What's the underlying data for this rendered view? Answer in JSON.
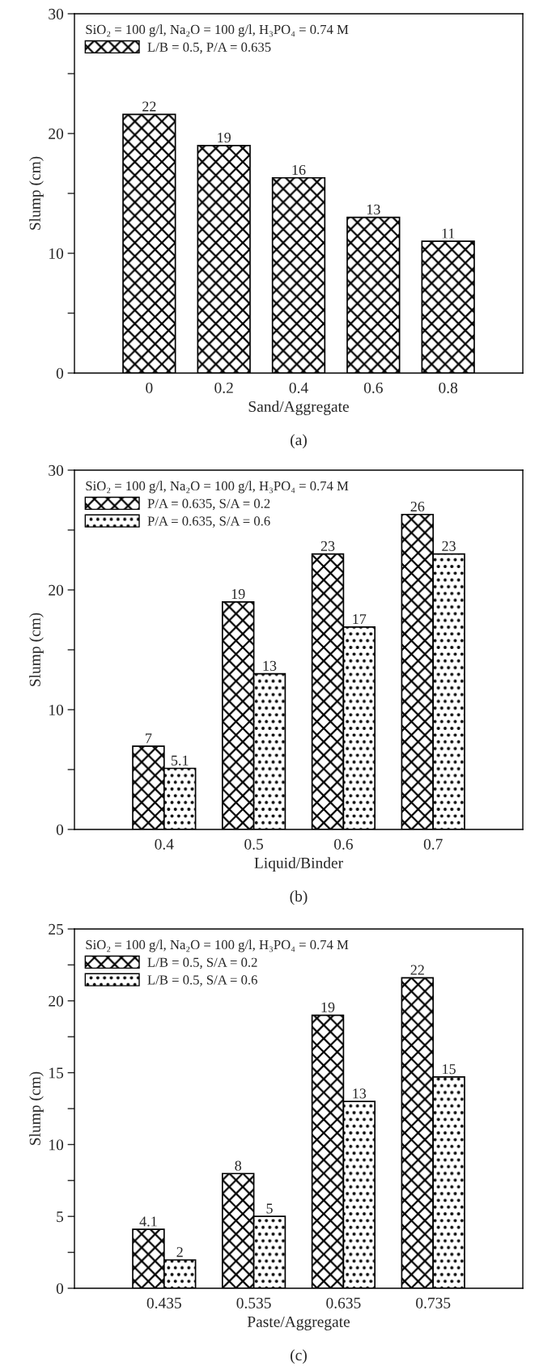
{
  "chart_data": [
    {
      "type": "bar",
      "xlabel": "Sand/Aggregate",
      "ylabel": "Slump (cm)",
      "legend_title": "SiO₂ = 100 g/l, Na₂O = 100 g/l, H₃PO₄ = 0.74 M",
      "annotations": [
        "(a)"
      ],
      "legend": "top left",
      "categories": [
        "0",
        "0.2",
        "0.4",
        "0.6",
        "0.8"
      ],
      "series": [
        {
          "name": "L/B = 0.5, P/A = 0.635",
          "color": "#000000",
          "values": [
            21.6,
            19.0,
            16.3,
            13.0,
            11.0
          ],
          "value_labels": [
            "22",
            "19",
            "16",
            "13",
            "11"
          ]
        }
      ],
      "ylim": [
        0,
        30
      ],
      "yticks": [
        0,
        {
          "value": 5,
          "label": null
        },
        10,
        {
          "value": 15,
          "label": null
        },
        20,
        {
          "value": 25,
          "label": null
        },
        30
      ]
    },
    {
      "type": "bar",
      "xlabel": "Liquid/Binder",
      "ylabel": "Slump (cm)",
      "legend_title": "SiO₂ = 100 g/l, Na₂O = 100 g/l, H₃PO₄ = 0.74 M",
      "annotations": [
        "(b)"
      ],
      "legend": "top left",
      "categories": [
        "0.4",
        "0.5",
        "0.6",
        "0.7"
      ],
      "series": [
        {
          "name": "P/A = 0.635, S/A = 0.2",
          "color": "#000000",
          "values": [
            6.95,
            19.0,
            23.0,
            26.3
          ],
          "value_labels": [
            "7",
            "19",
            "23",
            "26"
          ]
        },
        {
          "name": "P/A = 0.635, S/A = 0.6",
          "color": "#000000",
          "values": [
            5.1,
            13.0,
            16.9,
            23.0
          ],
          "value_labels": [
            "5.1",
            "13",
            "17",
            "23"
          ]
        }
      ],
      "ylim": [
        0,
        30
      ],
      "yticks": [
        0,
        {
          "value": 5,
          "label": null
        },
        10,
        {
          "value": 15,
          "label": null
        },
        20,
        {
          "value": 25,
          "label": null
        },
        30
      ]
    },
    {
      "type": "bar",
      "xlabel": "Paste/Aggregate",
      "ylabel": "Slump (cm)",
      "legend_title": "SiO₂ = 100 g/l, Na₂O = 100 g/l, H₃PO₄ = 0.74 M",
      "annotations": [
        "(c)"
      ],
      "legend": "top left",
      "categories": [
        "0.435",
        "0.535",
        "0.635",
        "0.735"
      ],
      "series": [
        {
          "name": "L/B = 0.5, S/A = 0.2",
          "color": "#000000",
          "values": [
            4.1,
            7.98,
            19.0,
            21.6
          ],
          "value_labels": [
            "4.1",
            "8",
            "19",
            "22"
          ]
        },
        {
          "name": "L/B = 0.5, S/A = 0.6",
          "color": "#000000",
          "values": [
            1.97,
            5.0,
            13.0,
            14.7
          ],
          "value_labels": [
            "2",
            "5",
            "13",
            "15"
          ]
        }
      ],
      "ylim": [
        0,
        25
      ],
      "yticks": [
        0,
        {
          "value": 2.5,
          "label": null
        },
        5,
        {
          "value": 7.5,
          "label": null
        },
        10,
        {
          "value": 12.5,
          "label": null
        },
        15,
        {
          "value": 17.5,
          "label": null
        },
        20,
        {
          "value": 22.5,
          "label": null
        },
        25
      ]
    }
  ]
}
